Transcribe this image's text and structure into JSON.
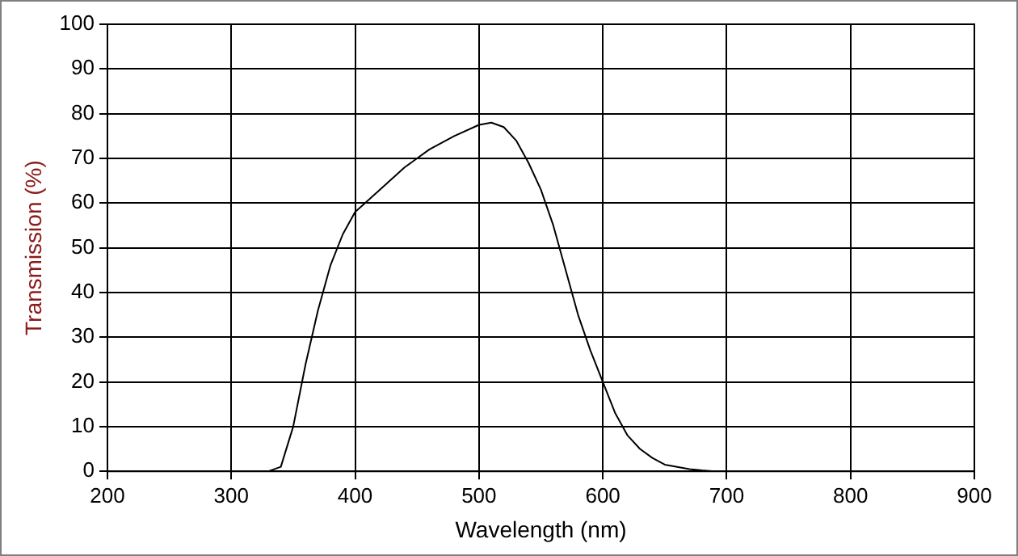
{
  "chart_data": {
    "type": "line",
    "xlabel": "Wavelength (nm)",
    "ylabel": "Transmission (%)",
    "x": [
      330,
      340,
      350,
      360,
      370,
      380,
      390,
      400,
      420,
      440,
      460,
      480,
      500,
      510,
      520,
      530,
      540,
      550,
      560,
      570,
      580,
      590,
      600,
      610,
      620,
      630,
      640,
      650,
      660,
      670,
      680,
      690
    ],
    "series": [
      {
        "color": "#000000",
        "values": [
          0,
          1,
          10,
          24,
          36,
          46,
          53,
          58,
          63,
          68,
          72,
          75,
          77.5,
          78,
          77,
          74,
          69,
          63,
          55,
          45,
          35,
          27,
          20,
          13,
          8,
          5,
          3,
          1.5,
          1,
          0.5,
          0.2,
          0
        ]
      }
    ],
    "xlim": [
      200,
      900
    ],
    "xticks": [
      200,
      300,
      400,
      500,
      600,
      700,
      800,
      900
    ],
    "ylim": [
      0,
      100
    ],
    "yticks": [
      0,
      10,
      20,
      30,
      40,
      50,
      60,
      70,
      80,
      90,
      100
    ],
    "grid": true,
    "legend": false,
    "marker": "none",
    "line_style": "solid"
  }
}
